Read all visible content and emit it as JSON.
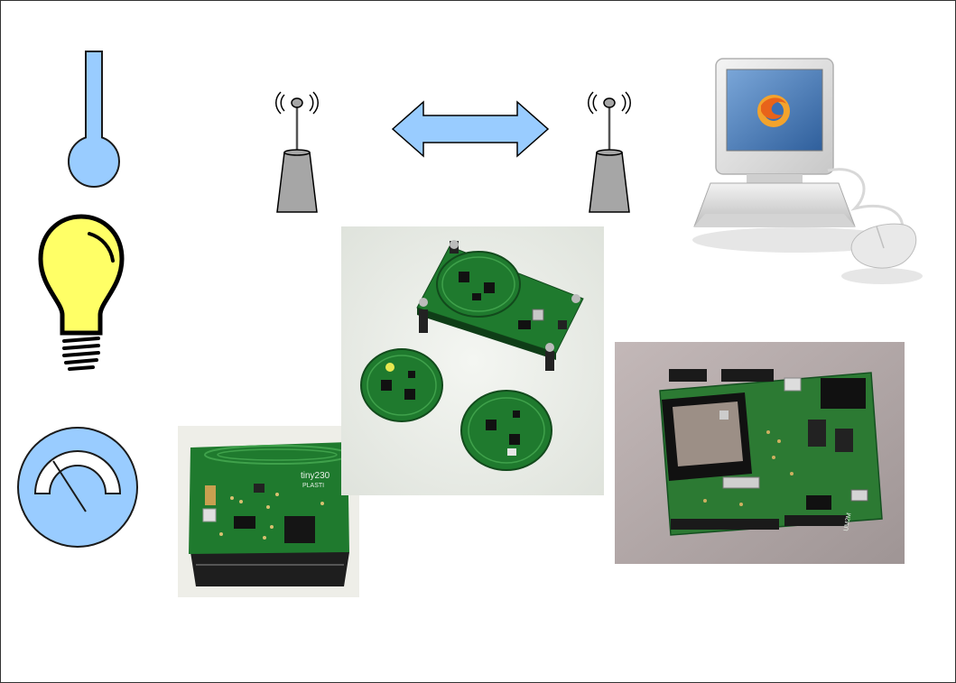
{
  "colors": {
    "sensor_blue": "#99ccff",
    "bulb_yellow": "#ffff66",
    "antenna_gray": "#a6a6a6",
    "arrow_blue": "#99ccff",
    "pcb_green": "#1f7a2e",
    "outline": "#1a1a1a"
  },
  "icons": [
    "thermometer-icon",
    "light-bulb-icon",
    "gauge-icon",
    "radio-antenna-icon",
    "bidirectional-arrow-icon",
    "desktop-computer-icon"
  ],
  "photos": [
    "sensor-node-board-photo",
    "wireless-node-boards-photo",
    "arduino-shield-board-photo"
  ],
  "labels": {
    "silk_left": "tiny230",
    "silk_left_sub": "PLASTI",
    "silk_right": "UM2M"
  }
}
